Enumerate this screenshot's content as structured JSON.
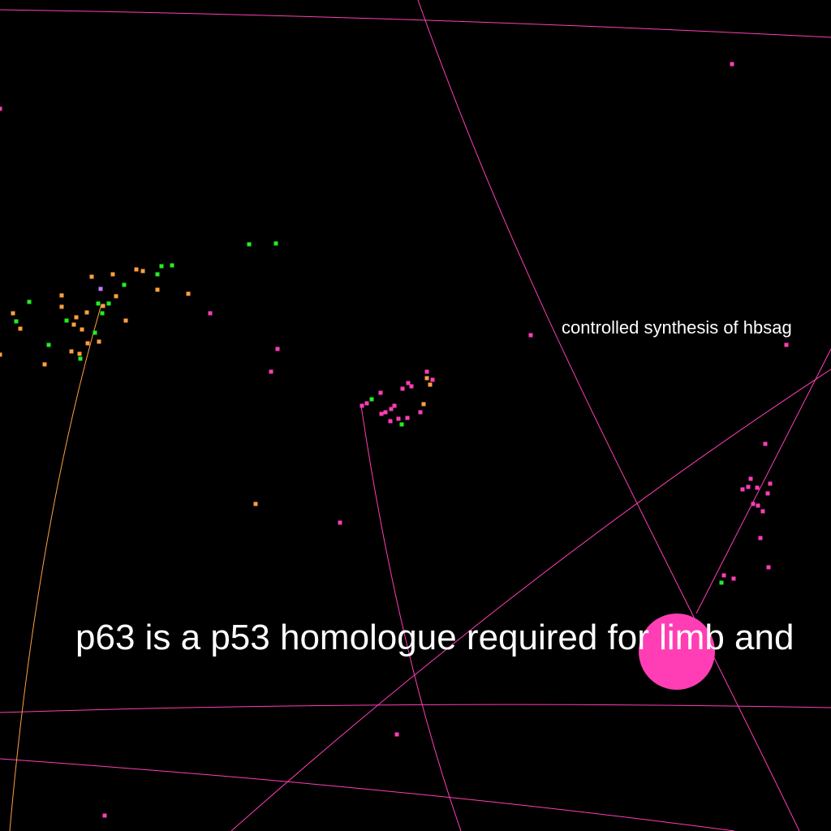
{
  "colors": {
    "background": "#000000",
    "pink": "#ff3eb5",
    "orange": "#ffa040",
    "green": "#22ee22",
    "violet": "#c080ff",
    "label": "#ffffff"
  },
  "labels": {
    "paper_title": "p63 is a p53 homologue required for limb and",
    "topic_label": "controlled synthesis of hbsag"
  }
}
